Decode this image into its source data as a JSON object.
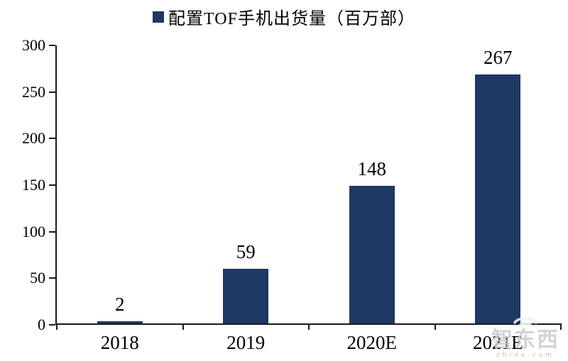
{
  "chart_data": {
    "type": "bar",
    "title": "配置TOF手机出货量（百万部）",
    "categories": [
      "2018",
      "2019",
      "2020E",
      "2021E"
    ],
    "values": [
      2,
      59,
      148,
      267
    ],
    "xlabel": "",
    "ylabel": "",
    "ylim": [
      0,
      300
    ],
    "ytick_interval": 50,
    "ytick_labels": [
      "0",
      "50",
      "100",
      "150",
      "200",
      "250",
      "300"
    ],
    "grid": false,
    "legend_position": "top-center",
    "bar_color": "#1f3864",
    "axis_color": "#1a1a1a",
    "text_color": "#000000"
  },
  "watermark": {
    "text": "智东西",
    "subtext": "zhidx.com",
    "text_color": "#cccccc",
    "subtext_color": "#dcba92"
  }
}
